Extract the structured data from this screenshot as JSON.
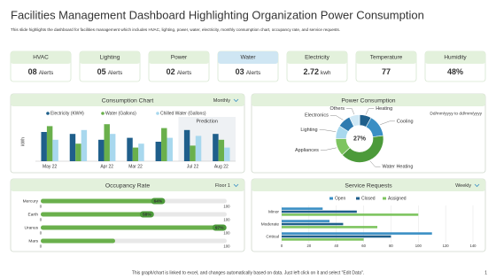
{
  "header": {
    "title": "Facilities Management Dashboard Highlighting Organization Power Consumption",
    "subtitle": "This slide highlights the dashboard for facilities management which includes HVAC, lighting, power, water, electricity, monthly consumption chart, occupancy rate, and service requests."
  },
  "kpis": [
    {
      "label": "HVAC",
      "value": "08",
      "unit": "Alerts"
    },
    {
      "label": "Lighting",
      "value": "05",
      "unit": "Alerts"
    },
    {
      "label": "Power",
      "value": "02",
      "unit": "Alerts"
    },
    {
      "label": "Water",
      "value": "03",
      "unit": "Alerts"
    },
    {
      "label": "Electricity",
      "value": "2.72",
      "unit": "kwh"
    },
    {
      "label": "Temperature",
      "value": "77"
    },
    {
      "label": "Humidity",
      "value": "48%"
    }
  ],
  "chart_data": [
    {
      "type": "bar",
      "title": "Consumption Chart",
      "dropdown": "Monthly",
      "y_label": "kWh",
      "annotation": "Prediction",
      "categories": [
        "May 22",
        null,
        "Apr 22",
        "Mar 22",
        null,
        "Jul 22",
        "Aug 22"
      ],
      "series": [
        {
          "name": "Electricity (KWH)",
          "color": "#1f5f8b",
          "values": [
            75,
            70,
            55,
            60,
            50,
            80,
            70
          ]
        },
        {
          "name": "Water (Gallons)",
          "color": "#6ab04c",
          "values": [
            90,
            45,
            95,
            35,
            85,
            40,
            55
          ]
        },
        {
          "name": "Chilled Water (Gallons)",
          "color": "#a8d8ee",
          "values": [
            55,
            80,
            70,
            45,
            60,
            65,
            35
          ]
        }
      ],
      "ylim": [
        0,
        100
      ]
    },
    {
      "type": "pie",
      "title": "Power Consumption",
      "date_range": "Dd/mm/yyyy to dd/mm/yyyy",
      "center_label": "27%",
      "categories": [
        "Heating",
        "Cooling",
        "Water Heating",
        "Appliances",
        "Lighting",
        "Electronics",
        "Others"
      ],
      "values": [
        8,
        15,
        40,
        12,
        9,
        9,
        7
      ],
      "colors": [
        "#1f5f8b",
        "#3a8fc4",
        "#4c9a3a",
        "#7dc45f",
        "#a8d8ee",
        "#2e7bb0",
        "#cfe8f5"
      ]
    },
    {
      "type": "hbar",
      "title": "Occupancy Rate",
      "dropdown": "Floor 1",
      "categories": [
        "Mercury",
        "Earth",
        "Uranus",
        "Mars"
      ],
      "values": [
        64,
        58,
        97,
        40
      ],
      "value_labels": [
        "64%",
        "58%",
        "97%",
        null
      ],
      "color": "#6ab04c",
      "xlim": [
        0,
        100
      ],
      "xticks": [
        0,
        100
      ]
    },
    {
      "type": "hbar-grouped",
      "title": "Service Requests",
      "dropdown": "Weekly",
      "categories": [
        "Minor",
        "Moderate",
        "Critical"
      ],
      "series": [
        {
          "name": "Open",
          "color": "#3a8fc4",
          "values": [
            30,
            35,
            110
          ]
        },
        {
          "name": "Closed",
          "color": "#1f5f8b",
          "values": [
            55,
            45,
            80
          ]
        },
        {
          "name": "Assigned",
          "color": "#7dc45f",
          "values": [
            100,
            70,
            60
          ]
        }
      ],
      "xlim": [
        0,
        140
      ],
      "xticks": [
        0,
        20,
        40,
        60,
        80,
        100,
        120,
        140
      ]
    }
  ],
  "footer": {
    "note": "This graph/chart is linked to excel, and changes automatically based on data. Just left click on it and select \"Edit Data\".",
    "page": "1"
  }
}
